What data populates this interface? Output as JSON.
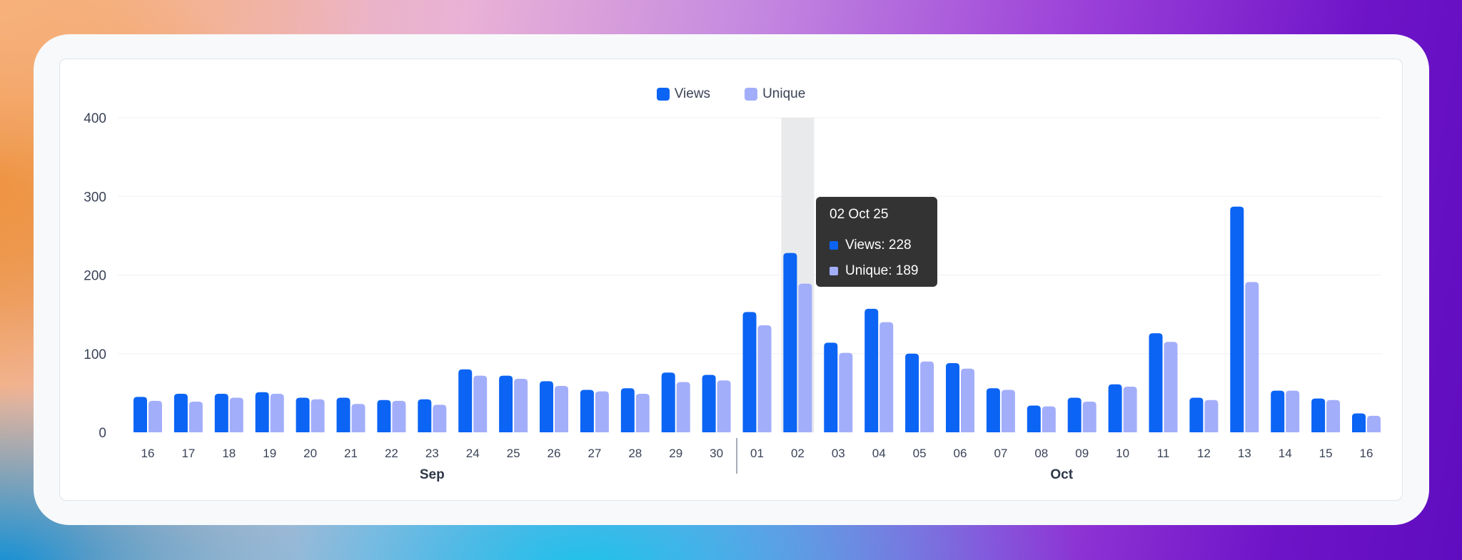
{
  "chart_data": {
    "type": "bar",
    "title": "",
    "xlabel": "",
    "ylabel": "",
    "ylim": [
      0,
      400
    ],
    "yticks": [
      0,
      100,
      200,
      300,
      400
    ],
    "grid": true,
    "legend": "top-center",
    "categories": [
      "16",
      "17",
      "18",
      "19",
      "20",
      "21",
      "22",
      "23",
      "24",
      "25",
      "26",
      "27",
      "28",
      "29",
      "30",
      "01",
      "02",
      "03",
      "04",
      "05",
      "06",
      "07",
      "08",
      "09",
      "10",
      "11",
      "12",
      "13",
      "14",
      "15",
      "16"
    ],
    "month_groups": [
      {
        "label": "Sep",
        "count": 15
      },
      {
        "label": "Oct",
        "count": 16
      }
    ],
    "series": [
      {
        "name": "Views",
        "color": "#0b64f4",
        "values": [
          45,
          49,
          49,
          51,
          44,
          44,
          41,
          42,
          80,
          72,
          65,
          54,
          56,
          76,
          73,
          153,
          228,
          114,
          157,
          100,
          88,
          56,
          34,
          44,
          61,
          126,
          44,
          287,
          53,
          43,
          24
        ]
      },
      {
        "name": "Unique",
        "color": "#a3aefa",
        "values": [
          40,
          39,
          44,
          49,
          42,
          36,
          40,
          35,
          72,
          68,
          59,
          52,
          49,
          64,
          66,
          136,
          189,
          101,
          140,
          90,
          81,
          54,
          33,
          39,
          58,
          115,
          41,
          191,
          53,
          41,
          21
        ]
      }
    ],
    "highlight_index": 16,
    "tooltip": {
      "title": "02 Oct 25",
      "rows": [
        {
          "label": "Views: 228",
          "color": "#0b64f4"
        },
        {
          "label": "Unique: 189",
          "color": "#a3aefa"
        }
      ]
    }
  }
}
